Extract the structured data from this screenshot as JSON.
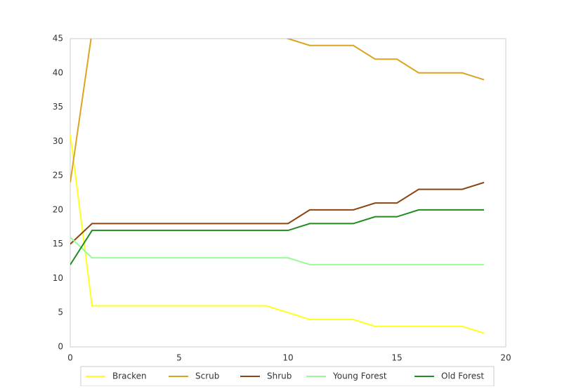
{
  "chart_data": {
    "type": "line",
    "x": [
      0,
      1,
      2,
      3,
      4,
      5,
      6,
      7,
      8,
      9,
      10,
      11,
      12,
      13,
      14,
      15,
      16,
      17,
      18,
      19
    ],
    "series": [
      {
        "name": "Bracken",
        "color": "#ffff22",
        "values": [
          31,
          6,
          6,
          6,
          6,
          6,
          6,
          6,
          6,
          6,
          5,
          4,
          4,
          4,
          3,
          3,
          3,
          3,
          3,
          2
        ]
      },
      {
        "name": "Scrub",
        "color": "#daa520",
        "values": [
          24,
          46,
          46,
          46,
          46,
          46,
          46,
          46,
          46,
          46,
          45,
          44,
          44,
          44,
          42,
          42,
          40,
          40,
          40,
          39
        ]
      },
      {
        "name": "Shrub",
        "color": "#8b4513",
        "values": [
          15,
          18,
          18,
          18,
          18,
          18,
          18,
          18,
          18,
          18,
          18,
          20,
          20,
          20,
          21,
          21,
          23,
          23,
          23,
          24
        ]
      },
      {
        "name": "Young Forest",
        "color": "#98fb98",
        "values": [
          16,
          13,
          13,
          13,
          13,
          13,
          13,
          13,
          13,
          13,
          13,
          12,
          12,
          12,
          12,
          12,
          12,
          12,
          12,
          12
        ]
      },
      {
        "name": "Old Forest",
        "color": "#228b22",
        "values": [
          12,
          17,
          17,
          17,
          17,
          17,
          17,
          17,
          17,
          17,
          17,
          18,
          18,
          18,
          19,
          19,
          20,
          20,
          20,
          20
        ]
      }
    ],
    "xlim": [
      0,
      20
    ],
    "xticks": [
      0,
      5,
      10,
      15,
      20
    ],
    "ylim": [
      0,
      45
    ],
    "yticks": [
      0,
      5,
      10,
      15,
      20,
      25,
      30,
      35,
      40,
      45
    ],
    "grid": false,
    "legend": "lower center"
  }
}
